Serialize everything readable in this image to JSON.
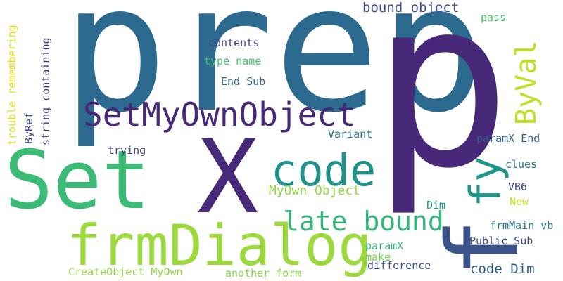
{
  "words": [
    {
      "text": "prep",
      "color": "#2c6a8f",
      "vertical": false
    },
    {
      "text": "p",
      "color": "#482878",
      "vertical": false
    },
    {
      "text": "Set",
      "color": "#3bbb75",
      "vertical": false
    },
    {
      "text": "X",
      "color": "#472a7a",
      "vertical": false
    },
    {
      "text": "frmDialog",
      "color": "#9bd93c",
      "vertical": false
    },
    {
      "text": "f",
      "color": "#3b528b",
      "vertical": true
    },
    {
      "text": "code",
      "color": "#21918c",
      "vertical": false
    },
    {
      "text": "SetMyOwnObject",
      "color": "#482878",
      "vertical": false
    },
    {
      "text": "fy",
      "color": "#1f968b",
      "vertical": true
    },
    {
      "text": "ByVal",
      "color": "#bddf26",
      "vertical": true
    },
    {
      "text": "late bound",
      "color": "#35b779",
      "vertical": false
    },
    {
      "text": "MyOwn Object",
      "color": "#8fd744",
      "vertical": false
    },
    {
      "text": "code Dim",
      "color": "#2c5e8e",
      "vertical": false
    },
    {
      "text": "bound object",
      "color": "#3e4a89",
      "vertical": false
    },
    {
      "text": "contents",
      "color": "#3e4989",
      "vertical": false
    },
    {
      "text": "type name",
      "color": "#4ac16d",
      "vertical": false
    },
    {
      "text": "End Sub",
      "color": "#31688e",
      "vertical": false
    },
    {
      "text": "Variant",
      "color": "#29788e",
      "vertical": false
    },
    {
      "text": "trying",
      "color": "#414487",
      "vertical": false
    },
    {
      "text": "paramX End",
      "color": "#355f8d",
      "vertical": false
    },
    {
      "text": "clues",
      "color": "#2a768e",
      "vertical": false
    },
    {
      "text": "VB6",
      "color": "#3e4a89",
      "vertical": false
    },
    {
      "text": "New",
      "color": "#c8e020",
      "vertical": false
    },
    {
      "text": "Dim",
      "color": "#1fa088",
      "vertical": false
    },
    {
      "text": "frmMain vb",
      "color": "#2a788e",
      "vertical": false
    },
    {
      "text": "Public Sub",
      "color": "#3e4a89",
      "vertical": false
    },
    {
      "text": "paramX",
      "color": "#35b779",
      "vertical": false
    },
    {
      "text": "make",
      "color": "#7ad151",
      "vertical": false
    },
    {
      "text": "difference",
      "color": "#3b528b",
      "vertical": false
    },
    {
      "text": "CreateObject MyOwn",
      "color": "#8fd744",
      "vertical": false
    },
    {
      "text": "another form",
      "color": "#86d549",
      "vertical": false
    },
    {
      "text": "pass",
      "color": "#4ac16d",
      "vertical": false
    },
    {
      "text": "ByRef",
      "color": "#3e4a89",
      "vertical": true
    },
    {
      "text": "string containing",
      "color": "#443983",
      "vertical": true
    },
    {
      "text": "trouble remembering",
      "color": "#dde318",
      "vertical": true
    }
  ]
}
